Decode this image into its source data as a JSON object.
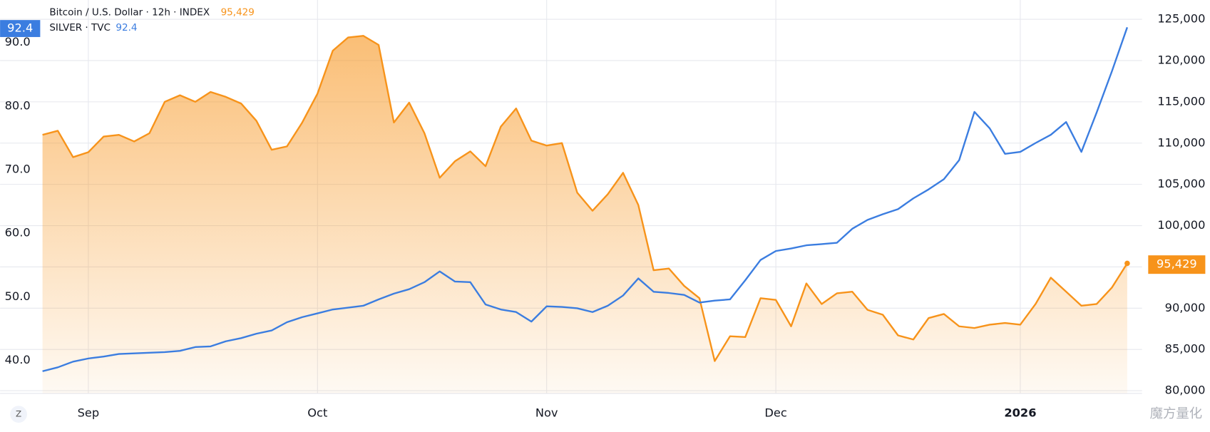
{
  "chart_data": {
    "type": "line",
    "legend_items": [
      "Bitcoin / U.S. Dollar · 12h · INDEX",
      "SILVER · TVC"
    ],
    "categories": [
      null,
      null,
      null,
      "Sep",
      null,
      null,
      null,
      null,
      null,
      null,
      null,
      null,
      null,
      null,
      null,
      null,
      null,
      null,
      "Oct",
      null,
      null,
      null,
      null,
      null,
      null,
      null,
      null,
      null,
      null,
      null,
      null,
      null,
      null,
      "Nov",
      null,
      null,
      null,
      null,
      null,
      null,
      null,
      null,
      null,
      null,
      null,
      null,
      null,
      null,
      "Dec",
      null,
      null,
      null,
      null,
      null,
      null,
      null,
      null,
      null,
      null,
      null,
      null,
      null,
      null,
      null,
      "2026",
      null,
      null,
      null,
      null,
      null,
      null,
      null
    ],
    "series": [
      {
        "name": "Bitcoin / U.S. Dollar · 12h · INDEX",
        "color": "#f7931a",
        "axis": "y2",
        "area": true,
        "values": [
          111000,
          111500,
          108300,
          108900,
          110800,
          111000,
          110200,
          111200,
          115000,
          115800,
          115000,
          116200,
          115600,
          114800,
          112700,
          109200,
          109600,
          112500,
          116000,
          121200,
          122800,
          123000,
          121900,
          112500,
          114900,
          111200,
          105800,
          107800,
          109000,
          107200,
          112000,
          114200,
          110300,
          109700,
          110000,
          104000,
          101800,
          103800,
          106400,
          102500,
          94600,
          94800,
          92700,
          91200,
          83600,
          86600,
          86500,
          91200,
          91000,
          87800,
          93000,
          90500,
          91800,
          92000,
          89800,
          89200,
          86700,
          86200,
          88800,
          89300,
          87800,
          87600,
          88000,
          88200,
          88000,
          90500,
          93700,
          92000,
          90300,
          90500,
          92500,
          95429
        ],
        "value_labels": [
          null,
          null,
          null,
          null,
          null,
          null,
          null,
          null,
          null,
          null,
          null,
          null,
          null,
          null,
          null,
          null,
          null,
          null,
          null,
          null,
          null,
          null,
          null,
          null,
          null,
          null,
          null,
          null,
          null,
          null,
          null,
          null,
          null,
          null,
          null,
          null,
          null,
          null,
          null,
          null,
          null,
          null,
          null,
          null,
          null,
          null,
          null,
          null,
          null,
          null,
          null,
          null,
          null,
          null,
          null,
          null,
          null,
          null,
          null,
          null,
          null,
          null,
          null,
          null,
          null,
          null,
          null,
          null,
          null,
          null,
          null,
          "95,429"
        ]
      },
      {
        "name": "SILVER · TVC",
        "color": "#3b7de0",
        "axis": "y",
        "values": [
          38.3,
          38.9,
          39.8,
          40.3,
          40.6,
          41.0,
          41.1,
          41.2,
          41.3,
          41.5,
          42.1,
          42.2,
          43.0,
          43.5,
          44.2,
          44.7,
          46.0,
          46.8,
          47.4,
          48.0,
          48.3,
          48.6,
          49.6,
          50.5,
          51.2,
          52.3,
          54.0,
          52.4,
          52.3,
          48.8,
          48.0,
          47.6,
          46.1,
          48.5,
          48.4,
          48.2,
          47.6,
          48.6,
          50.2,
          52.9,
          50.8,
          50.6,
          50.3,
          49.1,
          49.4,
          49.6,
          52.6,
          55.8,
          57.2,
          57.6,
          58.1,
          58.3,
          58.5,
          60.7,
          62.1,
          63.0,
          63.8,
          65.5,
          66.9,
          68.5,
          71.5,
          79.1,
          76.5,
          72.5,
          72.8,
          74.2,
          75.5,
          77.5,
          72.8,
          79.0,
          85.5,
          92.4
        ]
      }
    ],
    "ylim": [
      34.8,
      96.7
    ],
    "yticks": [
      {
        "value": 40,
        "label": "40.0"
      },
      {
        "value": 50,
        "label": "50.0"
      },
      {
        "value": 60,
        "label": "60.0"
      },
      {
        "value": 70,
        "label": "70.0"
      },
      {
        "value": 80,
        "label": "80.0"
      },
      {
        "value": 90,
        "label": "90.0"
      }
    ],
    "y2lim": [
      79670,
      127340
    ],
    "y2ticks": [
      {
        "value": 80000,
        "label": "80,000"
      },
      {
        "value": 85000,
        "label": "85,000"
      },
      {
        "value": 90000,
        "label": "90,000"
      },
      {
        "value": 95000,
        "label": "95,000"
      },
      {
        "value": 100000,
        "label": "100,000"
      },
      {
        "value": 105000,
        "label": "105,000"
      },
      {
        "value": 110000,
        "label": "110,000"
      },
      {
        "value": 115000,
        "label": "115,000"
      },
      {
        "value": 120000,
        "label": "120,000"
      },
      {
        "value": 125000,
        "label": "125,000"
      }
    ],
    "grid": true,
    "zoom_button": "Z",
    "watermark": "魔方量化"
  }
}
